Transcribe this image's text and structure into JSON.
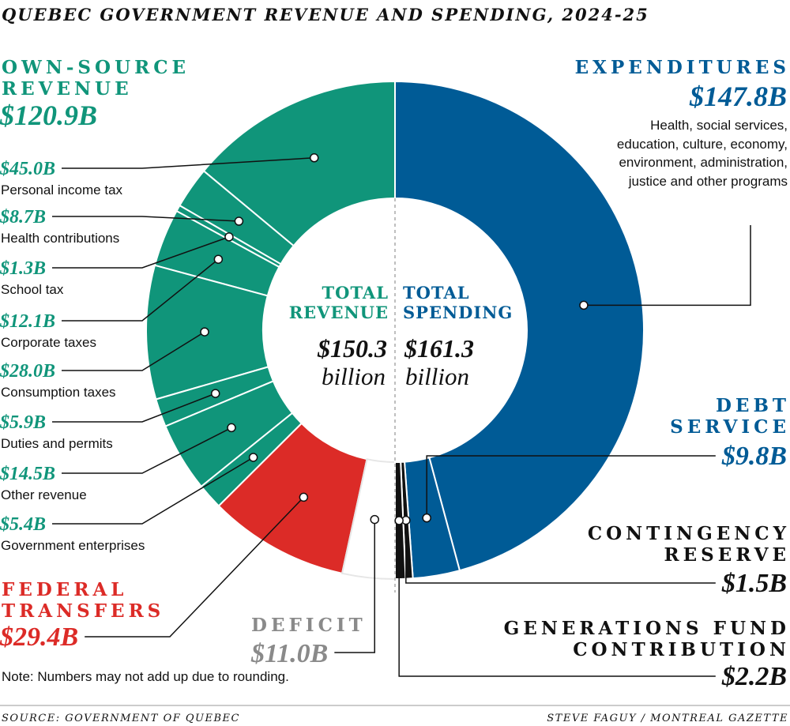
{
  "chart_data": {
    "type": "split-donut",
    "title": "QUEBEC GOVERNMENT REVENUE AND SPENDING, 2024-25",
    "note": "Note: Numbers may not add up due to rounding.",
    "source": "SOURCE: GOVERNMENT OF QUEBEC",
    "credit": "STEVE FAGUY / MONTREAL GAZETTE",
    "revenue": {
      "total_title": "TOTAL REVENUE",
      "total": 150.3,
      "total_label": "$150.3",
      "unit": "billion",
      "color": "#10957a",
      "group": {
        "name": "OWN-SOURCE REVENUE",
        "total": 120.9,
        "total_label": "$120.9B"
      },
      "categories": [
        "Personal income tax",
        "Health contributions",
        "School tax",
        "Corporate taxes",
        "Consumption taxes",
        "Duties and permits",
        "Other revenue",
        "Government enterprises",
        "FEDERAL TRANSFERS",
        "DEFICIT"
      ],
      "values": [
        45.0,
        8.7,
        1.3,
        12.1,
        28.0,
        5.9,
        14.5,
        5.4,
        29.4,
        11.0
      ],
      "value_labels": [
        "$45.0B",
        "$8.7B",
        "$1.3B",
        "$12.1B",
        "$28.0B",
        "$5.9B",
        "$14.5B",
        "$5.4B",
        "$29.4B",
        "$11.0B"
      ],
      "colors": [
        "#10957a",
        "#10957a",
        "#10957a",
        "#10957a",
        "#10957a",
        "#10957a",
        "#10957a",
        "#10957a",
        "#dc2b27",
        "#ffffff"
      ]
    },
    "spending": {
      "total_title": "TOTAL SPENDING",
      "total": 161.3,
      "total_label": "$161.3",
      "unit": "billion",
      "color": "#005b96",
      "categories": [
        "EXPENDITURES",
        "DEBT SERVICE",
        "CONTINGENCY RESERVE",
        "GENERATIONS FUND CONTRIBUTION"
      ],
      "values": [
        147.8,
        9.8,
        1.5,
        2.2
      ],
      "value_labels": [
        "$147.8B",
        "$9.8B",
        "$1.5B",
        "$2.2B"
      ],
      "colors": [
        "#005b96",
        "#005b96",
        "#111111",
        "#111111"
      ],
      "expenditures_note": "Health, social services, education, culture, economy, environment, administration, justice and other programs"
    }
  }
}
